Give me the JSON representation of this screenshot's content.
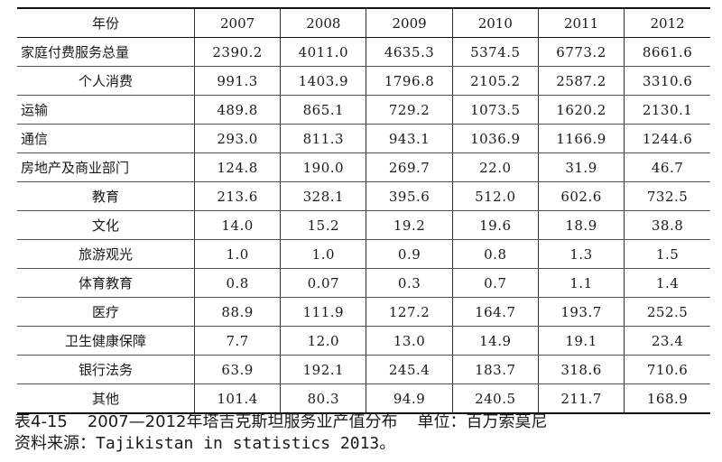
{
  "table": {
    "header": [
      "年份",
      "2007",
      "2008",
      "2009",
      "2010",
      "2011",
      "2012"
    ],
    "rows": [
      {
        "label": "家庭付费服务总量",
        "values": [
          "2390.2",
          "4011.0",
          "4635.3",
          "5374.5",
          "6773.2",
          "8661.6"
        ]
      },
      {
        "label": "个人消费",
        "values": [
          "991.3",
          "1403.9",
          "1796.8",
          "2105.2",
          "2587.2",
          "3310.6"
        ]
      },
      {
        "label": "运输",
        "values": [
          "489.8",
          "865.1",
          "729.2",
          "1073.5",
          "1620.2",
          "2130.1"
        ]
      },
      {
        "label": "通信",
        "values": [
          "293.0",
          "811.3",
          "943.1",
          "1036.9",
          "1166.9",
          "1244.6"
        ]
      },
      {
        "label": "房地产及商业部门",
        "values": [
          "124.8",
          "190.0",
          "269.7",
          "22.0",
          "31.9",
          "46.7"
        ]
      },
      {
        "label": "教育",
        "values": [
          "213.6",
          "328.1",
          "395.6",
          "512.0",
          "602.6",
          "732.5"
        ]
      },
      {
        "label": "文化",
        "values": [
          "14.0",
          "15.2",
          "19.2",
          "19.6",
          "18.9",
          "38.8"
        ]
      },
      {
        "label": "旅游观光",
        "values": [
          "1.0",
          "1.0",
          "0.9",
          "0.8",
          "1.3",
          "1.5"
        ]
      },
      {
        "label": "体育教育",
        "values": [
          "0.8",
          "0.07",
          "0.3",
          "0.7",
          "1.1",
          "1.4"
        ]
      },
      {
        "label": "医疗",
        "values": [
          "88.9",
          "111.9",
          "127.2",
          "164.7",
          "193.7",
          "252.5"
        ]
      },
      {
        "label": "卫生健康保障",
        "values": [
          "7.7",
          "12.0",
          "13.0",
          "14.9",
          "19.1",
          "23.4"
        ]
      },
      {
        "label": "银行法务",
        "values": [
          "63.9",
          "192.1",
          "245.4",
          "183.7",
          "318.6",
          "710.6"
        ]
      },
      {
        "label": "其他",
        "values": [
          "101.4",
          "80.3",
          "94.9",
          "240.5",
          "211.7",
          "168.9"
        ]
      }
    ]
  },
  "caption": {
    "table_number": "表4-15",
    "title": "2007—2012年塔吉克斯坦服务业产值分布",
    "unit": "单位：百万索莫尼",
    "source_label": "资料来源：",
    "source": "Tajikistan in statistics 2013",
    "source_end": "。"
  }
}
